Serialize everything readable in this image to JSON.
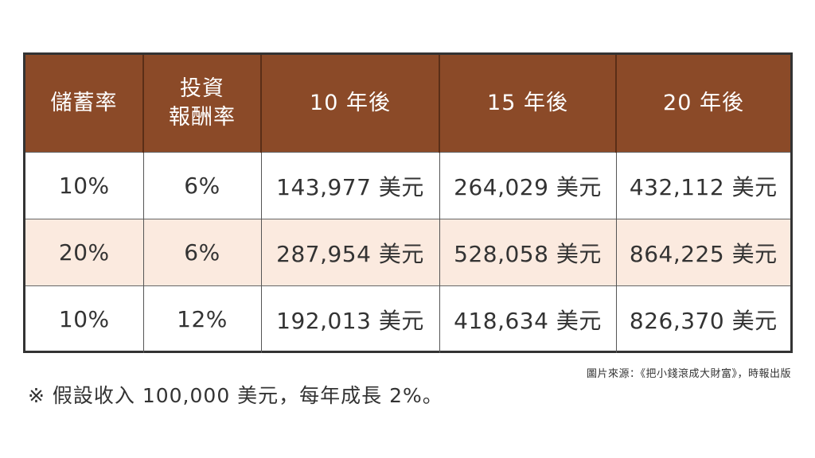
{
  "table": {
    "headers": [
      "儲蓄率",
      "投資",
      "報酬率",
      "10 年後",
      "15 年後",
      "20 年後"
    ],
    "rows": [
      {
        "saving_rate": "10%",
        "return_rate": "6%",
        "y10": "143,977 美元",
        "y15": "264,029 美元",
        "y20": "432,112 美元"
      },
      {
        "saving_rate": "20%",
        "return_rate": "6%",
        "y10": "287,954 美元",
        "y15": "528,058 美元",
        "y20": "864,225 美元"
      },
      {
        "saving_rate": "10%",
        "return_rate": "12%",
        "y10": "192,013 美元",
        "y15": "418,634 美元",
        "y20": "826,370 美元"
      }
    ],
    "colors": {
      "header_bg": "#8b4a28",
      "header_text": "#ffffff",
      "alt_row_bg": "#fbeadf",
      "border": "#333333"
    }
  },
  "source": "圖片來源：《把小錢滾成大財富》，時報出版",
  "note": "※ 假設收入 100,000 美元，每年成長 2%。"
}
